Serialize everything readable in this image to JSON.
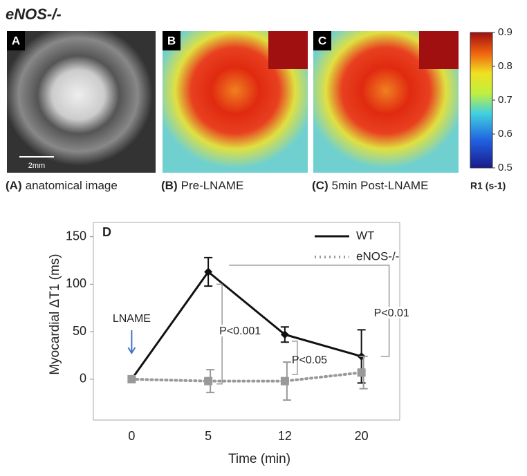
{
  "figure": {
    "title": "eNOS-/-",
    "panels": [
      {
        "letter": "A",
        "tag": "(A)",
        "caption": "anatomical image"
      },
      {
        "letter": "B",
        "tag": "(B)",
        "caption": "Pre-LNAME"
      },
      {
        "letter": "C",
        "tag": "(C)",
        "caption": "5min Post-LNAME"
      }
    ],
    "scale_bar": "2mm",
    "colorbar": {
      "lim": [
        0.5,
        0.9
      ],
      "ticks": [
        0.5,
        0.6,
        0.7,
        0.8,
        0.9
      ],
      "label": "R1 (s-1)"
    }
  },
  "chart_data": {
    "type": "line",
    "panel_label": "D",
    "x_label": "Time (min)",
    "y_label": "Myocardial ΔT1 (ms)",
    "categories": [
      "0",
      "5",
      "12",
      "20"
    ],
    "ylim": [
      -43,
      165
    ],
    "yticks": [
      0,
      50,
      100,
      150
    ],
    "series": [
      {
        "name": "WT",
        "color": "#111111",
        "values": [
          0,
          113,
          47,
          24
        ],
        "errors": [
          0,
          15,
          8,
          28
        ]
      },
      {
        "name": "eNOS-/-",
        "color": "#999999",
        "values": [
          0,
          -2,
          -2,
          7
        ],
        "errors": [
          0,
          12,
          20,
          17
        ]
      }
    ],
    "annotations": [
      "LNAME",
      "P<0.001",
      "P<0.05",
      "P<0.01"
    ],
    "legend": "top-right"
  }
}
